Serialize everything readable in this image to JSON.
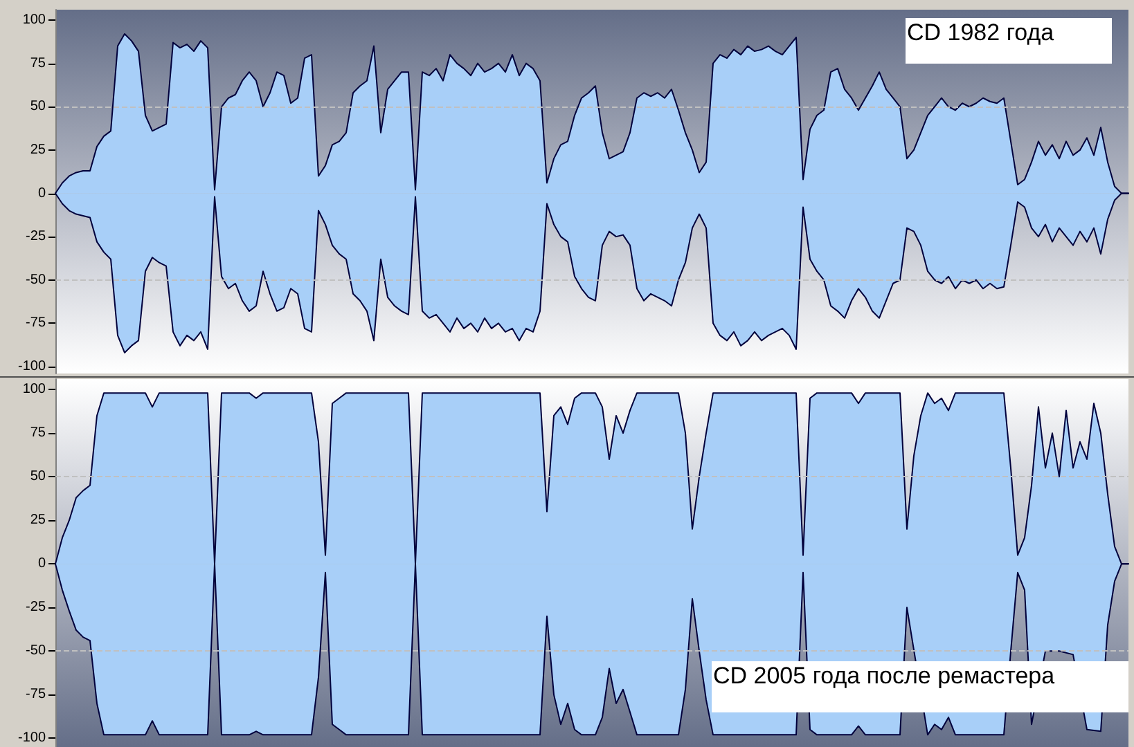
{
  "chart_data": [
    {
      "type": "area",
      "title": "CD 1982 года",
      "categories": [
        null,
        null,
        null,
        null,
        null,
        null,
        null,
        null,
        null,
        null,
        null,
        null,
        null,
        null,
        null,
        null,
        null,
        null,
        null,
        null,
        null,
        null,
        null,
        null,
        null,
        null,
        null,
        null,
        null,
        null,
        null,
        null,
        null,
        null,
        null,
        null,
        null,
        null,
        null,
        null,
        null,
        null,
        null,
        null,
        null,
        null,
        null,
        null,
        null,
        null,
        null,
        null,
        null,
        null,
        null,
        null,
        null,
        null,
        null,
        null,
        null,
        null,
        null,
        null,
        null,
        null,
        null,
        null,
        null,
        null,
        null,
        null,
        null,
        null,
        null,
        null,
        null,
        null,
        null,
        null,
        null,
        null,
        null,
        null,
        null,
        null,
        null,
        null,
        null,
        null,
        null,
        null,
        null,
        null,
        null,
        null,
        null,
        null,
        null,
        null,
        null,
        null,
        null,
        null,
        null,
        null,
        null,
        null,
        null,
        null,
        null,
        null,
        null,
        null,
        null,
        null,
        null,
        null,
        null,
        null,
        null,
        null,
        null,
        null,
        null,
        null,
        null,
        null,
        null,
        null,
        null,
        null,
        null,
        null,
        null,
        null,
        null,
        null,
        null,
        null,
        null,
        null,
        null,
        null,
        null,
        null,
        null,
        null,
        null,
        null,
        null,
        null,
        null,
        null,
        null,
        null
      ],
      "series": [
        {
          "color": "#a8cff8",
          "values": [
            0,
            6,
            10,
            12,
            13,
            13,
            27,
            33,
            36,
            85,
            92,
            88,
            82,
            45,
            36,
            38,
            40,
            87,
            84,
            86,
            82,
            88,
            84,
            2,
            50,
            55,
            57,
            65,
            70,
            65,
            50,
            58,
            70,
            68,
            52,
            55,
            78,
            80,
            10,
            16,
            28,
            30,
            35,
            58,
            62,
            65,
            85,
            35,
            60,
            65,
            70,
            70,
            2,
            70,
            68,
            72,
            65,
            80,
            75,
            72,
            68,
            75,
            70,
            72,
            75,
            70,
            80,
            68,
            75,
            72,
            65,
            6,
            20,
            28,
            30,
            45,
            55,
            58,
            62,
            35,
            20,
            22,
            24,
            35,
            55,
            58,
            56,
            58,
            55,
            60,
            48,
            35,
            25,
            12,
            18,
            75,
            80,
            78,
            83,
            80,
            85,
            82,
            83,
            85,
            82,
            80,
            85,
            90,
            8,
            37,
            45,
            48,
            70,
            72,
            60,
            55,
            48,
            55,
            62,
            70,
            60,
            55,
            50,
            20,
            25,
            35,
            45,
            50,
            55,
            50,
            48,
            52,
            50,
            52,
            55,
            53,
            52,
            55,
            30,
            5,
            8,
            18,
            30,
            22,
            28,
            20,
            30,
            22,
            25,
            32,
            22,
            38,
            18,
            4,
            0,
            0
          ]
        },
        {
          "color": "#a8cff8",
          "values": [
            0,
            -6,
            -10,
            -12,
            -13,
            -14,
            -28,
            -34,
            -38,
            -82,
            -92,
            -88,
            -85,
            -45,
            -37,
            -40,
            -42,
            -80,
            -88,
            -82,
            -85,
            -80,
            -90,
            -2,
            -48,
            -55,
            -52,
            -62,
            -68,
            -65,
            -45,
            -58,
            -68,
            -66,
            -55,
            -58,
            -78,
            -80,
            -10,
            -18,
            -30,
            -35,
            -38,
            -58,
            -62,
            -68,
            -85,
            -38,
            -60,
            -65,
            -68,
            -70,
            -2,
            -68,
            -72,
            -70,
            -75,
            -80,
            -72,
            -78,
            -75,
            -80,
            -72,
            -78,
            -75,
            -80,
            -78,
            -85,
            -78,
            -80,
            -68,
            -6,
            -18,
            -25,
            -28,
            -48,
            -55,
            -60,
            -62,
            -30,
            -22,
            -25,
            -24,
            -30,
            -55,
            -62,
            -58,
            -60,
            -62,
            -65,
            -50,
            -40,
            -20,
            -12,
            -20,
            -75,
            -82,
            -85,
            -80,
            -88,
            -85,
            -80,
            -85,
            -82,
            -80,
            -78,
            -82,
            -90,
            -8,
            -38,
            -45,
            -50,
            -65,
            -68,
            -72,
            -62,
            -55,
            -60,
            -68,
            -72,
            -62,
            -52,
            -50,
            -20,
            -22,
            -30,
            -45,
            -50,
            -52,
            -48,
            -55,
            -50,
            -52,
            -50,
            -55,
            -52,
            -55,
            -54,
            -30,
            -5,
            -8,
            -20,
            -25,
            -18,
            -28,
            -20,
            -25,
            -30,
            -22,
            -28,
            -20,
            -35,
            -15,
            -4,
            0,
            0
          ]
        }
      ],
      "ylim": [
        -104,
        106
      ],
      "yticks": [
        -100,
        -75,
        -50,
        -25,
        0,
        25,
        50,
        75,
        100
      ],
      "ref_lines": [
        {
          "axis": "y",
          "value": 50,
          "color": "#c0c0c0",
          "line_style": "dashed"
        },
        {
          "axis": "y",
          "value": -50,
          "color": "#c0c0c0",
          "line_style": "dashed"
        }
      ],
      "tick_labels": "y"
    },
    {
      "type": "area",
      "title": "CD 2005 года после ремастера",
      "categories": [
        null,
        null,
        null,
        null,
        null,
        null,
        null,
        null,
        null,
        null,
        null,
        null,
        null,
        null,
        null,
        null,
        null,
        null,
        null,
        null,
        null,
        null,
        null,
        null,
        null,
        null,
        null,
        null,
        null,
        null,
        null,
        null,
        null,
        null,
        null,
        null,
        null,
        null,
        null,
        null,
        null,
        null,
        null,
        null,
        null,
        null,
        null,
        null,
        null,
        null,
        null,
        null,
        null,
        null,
        null,
        null,
        null,
        null,
        null,
        null,
        null,
        null,
        null,
        null,
        null,
        null,
        null,
        null,
        null,
        null,
        null,
        null,
        null,
        null,
        null,
        null,
        null,
        null,
        null,
        null,
        null,
        null,
        null,
        null,
        null,
        null,
        null,
        null,
        null,
        null,
        null,
        null,
        null,
        null,
        null,
        null,
        null,
        null,
        null,
        null,
        null,
        null,
        null,
        null,
        null,
        null,
        null,
        null,
        null,
        null,
        null,
        null,
        null,
        null,
        null,
        null,
        null,
        null,
        null,
        null,
        null,
        null,
        null,
        null,
        null,
        null,
        null,
        null,
        null,
        null,
        null,
        null,
        null,
        null,
        null,
        null,
        null,
        null,
        null,
        null,
        null,
        null,
        null,
        null,
        null,
        null,
        null,
        null,
        null,
        null,
        null,
        null,
        null,
        null,
        null,
        null
      ],
      "series": [
        {
          "color": "#a8cff8",
          "values": [
            0,
            15,
            25,
            38,
            42,
            45,
            85,
            98,
            98,
            98,
            98,
            98,
            98,
            98,
            90,
            98,
            98,
            98,
            98,
            98,
            98,
            98,
            98,
            0,
            98,
            98,
            98,
            98,
            98,
            95,
            98,
            98,
            98,
            98,
            98,
            98,
            98,
            98,
            70,
            5,
            92,
            95,
            98,
            98,
            98,
            98,
            98,
            98,
            98,
            98,
            98,
            98,
            0,
            98,
            98,
            98,
            98,
            98,
            98,
            98,
            98,
            98,
            98,
            98,
            98,
            98,
            98,
            98,
            98,
            98,
            98,
            30,
            85,
            90,
            80,
            95,
            98,
            98,
            98,
            90,
            60,
            85,
            75,
            88,
            98,
            98,
            98,
            98,
            98,
            98,
            98,
            75,
            20,
            50,
            75,
            98,
            98,
            98,
            98,
            98,
            98,
            98,
            98,
            98,
            98,
            98,
            98,
            98,
            5,
            95,
            98,
            98,
            98,
            98,
            98,
            98,
            92,
            98,
            98,
            98,
            98,
            98,
            98,
            20,
            62,
            85,
            98,
            92,
            95,
            88,
            98,
            98,
            98,
            98,
            98,
            98,
            98,
            98,
            55,
            5,
            15,
            45,
            90,
            55,
            75,
            50,
            88,
            55,
            70,
            60,
            92,
            75,
            40,
            10,
            0,
            0
          ]
        },
        {
          "color": "#a8cff8",
          "values": [
            0,
            -15,
            -27,
            -38,
            -42,
            -44,
            -80,
            -98,
            -98,
            -98,
            -98,
            -98,
            -98,
            -98,
            -90,
            -98,
            -98,
            -98,
            -98,
            -98,
            -98,
            -98,
            -98,
            0,
            -98,
            -98,
            -98,
            -98,
            -98,
            -96,
            -98,
            -98,
            -98,
            -98,
            -98,
            -98,
            -98,
            -98,
            -65,
            -5,
            -92,
            -95,
            -98,
            -98,
            -98,
            -98,
            -98,
            -98,
            -98,
            -98,
            -98,
            -98,
            0,
            -98,
            -98,
            -98,
            -98,
            -98,
            -98,
            -98,
            -98,
            -98,
            -98,
            -98,
            -98,
            -98,
            -98,
            -98,
            -98,
            -98,
            -98,
            -30,
            -75,
            -92,
            -80,
            -95,
            -98,
            -98,
            -98,
            -88,
            -60,
            -80,
            -72,
            -85,
            -98,
            -98,
            -98,
            -98,
            -98,
            -98,
            -98,
            -72,
            -20,
            -50,
            -78,
            -98,
            -98,
            -98,
            -98,
            -98,
            -98,
            -98,
            -98,
            -98,
            -98,
            -98,
            -98,
            -98,
            -5,
            -95,
            -98,
            -98,
            -98,
            -98,
            -98,
            -98,
            -93,
            -98,
            -98,
            -98,
            -98,
            -98,
            -98,
            -25,
            null,
            null,
            -98,
            -92,
            -95,
            -88,
            -98,
            -98,
            -98,
            -98,
            -98,
            -98,
            -98,
            -98,
            -50,
            -5,
            -15,
            -92,
            null,
            -50,
            null,
            -50,
            null,
            -52,
            null,
            -95,
            null,
            -96,
            -35,
            -10,
            0,
            0
          ]
        }
      ],
      "ylim": [
        -105,
        106
      ],
      "yticks": [
        -100,
        -75,
        -50,
        -25,
        0,
        25,
        50,
        75,
        100
      ],
      "ref_lines": [
        {
          "axis": "y",
          "value": 50,
          "color": "#c0c0c0",
          "line_style": "dashed"
        },
        {
          "axis": "y",
          "value": -50,
          "color": "#c0c0c0",
          "line_style": "dashed"
        }
      ],
      "tick_labels": "y"
    }
  ]
}
